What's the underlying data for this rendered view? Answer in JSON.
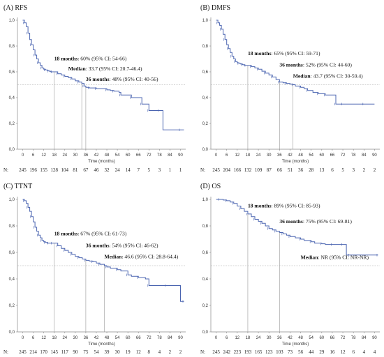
{
  "colors": {
    "curve": "#4a64b0",
    "guide": "#999999",
    "axis": "#888888",
    "censor": "#4a64b0"
  },
  "chart_data": [
    {
      "id": "A",
      "type": "line",
      "title": "(A) RFS",
      "xlabel": "Time (months)",
      "xticks": [
        0,
        6,
        12,
        18,
        24,
        30,
        36,
        42,
        48,
        54,
        60,
        66,
        72,
        78,
        84,
        90
      ],
      "xlim": [
        -3,
        93
      ],
      "yticks": [
        "0,0",
        "0,2",
        "0,4",
        "0,6",
        "0,8",
        "1,0"
      ],
      "ylim": [
        0,
        1
      ],
      "median_line": 0.5,
      "risk_label": "N:",
      "risk_table": [
        "245",
        "196",
        "155",
        "128",
        "104",
        "81",
        "67",
        "46",
        "32",
        "24",
        "14",
        "7",
        "5",
        "3",
        "1",
        "1"
      ],
      "curve": {
        "x": [
          0,
          1,
          2,
          3,
          4,
          5,
          6,
          7,
          8,
          9,
          10,
          11,
          12,
          13,
          14,
          15,
          16,
          17,
          18,
          20,
          22,
          24,
          26,
          28,
          30,
          32,
          33.7,
          35,
          36,
          38,
          40,
          42,
          45,
          48,
          50,
          52,
          55,
          56,
          60,
          62,
          66,
          68,
          70,
          72,
          75,
          78,
          80,
          90,
          92
        ],
        "y": [
          1.0,
          0.98,
          0.95,
          0.9,
          0.85,
          0.81,
          0.77,
          0.73,
          0.7,
          0.67,
          0.65,
          0.63,
          0.62,
          0.615,
          0.61,
          0.605,
          0.6,
          0.6,
          0.6,
          0.585,
          0.575,
          0.565,
          0.555,
          0.545,
          0.53,
          0.52,
          0.51,
          0.49,
          0.48,
          0.475,
          0.475,
          0.47,
          0.47,
          0.46,
          0.455,
          0.45,
          0.44,
          0.42,
          0.42,
          0.4,
          0.4,
          0.35,
          0.35,
          0.3,
          0.3,
          0.3,
          0.15,
          0.15,
          0.15
        ]
      },
      "guides": [
        18,
        33.7,
        36
      ],
      "annotations": [
        {
          "bold": "18 months",
          "rest": ": 60% (95% CI: 54-66)",
          "x": 18,
          "y": 0.69
        },
        {
          "bold": "Median",
          "rest": ": 33.7 (95% CI: 20.7-46.4)",
          "x": 26,
          "y": 0.61
        },
        {
          "bold": "36 months",
          "rest": ": 48% (95% CI: 40-56)",
          "x": 36,
          "y": 0.53
        }
      ]
    },
    {
      "id": "B",
      "type": "line",
      "title": "(B) DMFS",
      "xlabel": "Time (months)",
      "xticks": [
        0,
        6,
        12,
        18,
        24,
        30,
        36,
        42,
        48,
        54,
        60,
        66,
        72,
        78,
        84,
        90
      ],
      "xlim": [
        -3,
        93
      ],
      "yticks": [
        "0,0",
        "0,2",
        "0,4",
        "0,6",
        "0,8",
        "1,0"
      ],
      "ylim": [
        0,
        1
      ],
      "median_line": 0.5,
      "risk_label": "N:",
      "risk_table": [
        "245",
        "204",
        "166",
        "132",
        "109",
        "87",
        "66",
        "51",
        "36",
        "28",
        "13",
        "6",
        "5",
        "3",
        "2",
        "2"
      ],
      "curve": {
        "x": [
          0,
          1,
          2,
          3,
          4,
          5,
          6,
          7,
          8,
          9,
          10,
          11,
          12,
          13,
          14,
          15,
          16,
          17,
          18,
          20,
          22,
          24,
          26,
          28,
          30,
          32,
          34,
          36,
          38,
          40,
          42,
          43.7,
          45,
          48,
          50,
          52,
          55,
          58,
          60,
          62,
          66,
          68,
          70,
          72,
          78,
          84,
          90
        ],
        "y": [
          1.0,
          0.98,
          0.96,
          0.93,
          0.89,
          0.85,
          0.81,
          0.78,
          0.75,
          0.72,
          0.7,
          0.68,
          0.67,
          0.665,
          0.66,
          0.655,
          0.65,
          0.65,
          0.65,
          0.64,
          0.63,
          0.62,
          0.605,
          0.59,
          0.575,
          0.56,
          0.54,
          0.52,
          0.515,
          0.51,
          0.505,
          0.5,
          0.49,
          0.48,
          0.47,
          0.455,
          0.44,
          0.43,
          0.43,
          0.42,
          0.42,
          0.35,
          0.35,
          0.35,
          0.35,
          0.35,
          0.35
        ]
      },
      "guides": [
        18,
        36,
        43.7
      ],
      "annotations": [
        {
          "bold": "18 months",
          "rest": ": 65% (95% CI: 59-71)",
          "x": 18,
          "y": 0.73
        },
        {
          "bold": "36 months",
          "rest": ": 52% (95% CI: 44-60)",
          "x": 36,
          "y": 0.64
        },
        {
          "bold": "Median",
          "rest": ": 43.7 (95% CI: 30-59.4)",
          "x": 43.7,
          "y": 0.555
        }
      ]
    },
    {
      "id": "C",
      "type": "line",
      "title": "(C) TTNT",
      "xlabel": "Time (months)",
      "xticks": [
        0,
        6,
        12,
        18,
        24,
        30,
        36,
        42,
        48,
        54,
        60,
        66,
        72,
        78,
        84,
        90
      ],
      "xlim": [
        -3,
        93
      ],
      "yticks": [
        "0,0",
        "0,2",
        "0,4",
        "0,6",
        "0,8",
        "1,0"
      ],
      "ylim": [
        0,
        1
      ],
      "median_line": 0.5,
      "risk_label": "N:",
      "risk_table": [
        "245",
        "214",
        "170",
        "145",
        "117",
        "90",
        "75",
        "54",
        "39",
        "30",
        "19",
        "12",
        "8",
        "4",
        "2",
        "2"
      ],
      "curve": {
        "x": [
          0,
          1,
          2,
          3,
          4,
          5,
          6,
          7,
          8,
          9,
          10,
          11,
          12,
          13,
          14,
          15,
          16,
          17,
          18,
          20,
          22,
          24,
          26,
          28,
          30,
          32,
          34,
          36,
          38,
          40,
          42,
          44,
          46.6,
          48,
          50,
          54,
          56,
          60,
          62,
          66,
          70,
          72,
          78,
          82,
          90,
          92
        ],
        "y": [
          1.0,
          0.99,
          0.97,
          0.94,
          0.91,
          0.87,
          0.83,
          0.79,
          0.76,
          0.73,
          0.71,
          0.69,
          0.68,
          0.675,
          0.67,
          0.67,
          0.67,
          0.67,
          0.67,
          0.65,
          0.63,
          0.615,
          0.6,
          0.585,
          0.57,
          0.56,
          0.55,
          0.54,
          0.535,
          0.53,
          0.52,
          0.51,
          0.5,
          0.49,
          0.48,
          0.47,
          0.46,
          0.43,
          0.42,
          0.41,
          0.4,
          0.35,
          0.35,
          0.35,
          0.23,
          0.23
        ]
      },
      "guides": [
        18,
        36,
        46.6
      ],
      "annotations": [
        {
          "bold": "18 months",
          "rest": ": 67% (95% CI: 61-73)",
          "x": 18,
          "y": 0.73
        },
        {
          "bold": "36 months",
          "rest": ": 54% (95% CI: 46-62)",
          "x": 36,
          "y": 0.64
        },
        {
          "bold": "Median",
          "rest": ": 46.6 (95% CI: 28.8-64.4)",
          "x": 46.6,
          "y": 0.555
        }
      ]
    },
    {
      "id": "D",
      "type": "line",
      "title": "(D) OS",
      "xlabel": "Time (months)",
      "xticks": [
        0,
        6,
        12,
        18,
        24,
        30,
        36,
        42,
        48,
        54,
        60,
        66,
        72,
        78,
        84,
        90
      ],
      "xlim": [
        -3,
        93
      ],
      "yticks": [
        "0,0",
        "0,2",
        "0,4",
        "0,6",
        "0,8",
        "1,0"
      ],
      "ylim": [
        0,
        1
      ],
      "median_line": 0.5,
      "risk_label": "N:",
      "risk_table": [
        "245",
        "242",
        "223",
        "193",
        "165",
        "123",
        "103",
        "73",
        "56",
        "44",
        "29",
        "16",
        "12",
        "6",
        "4",
        "4"
      ],
      "curve": {
        "x": [
          0,
          2,
          4,
          6,
          8,
          10,
          12,
          14,
          16,
          18,
          20,
          22,
          24,
          26,
          28,
          30,
          32,
          34,
          36,
          38,
          40,
          42,
          45,
          48,
          50,
          54,
          56,
          60,
          62,
          66,
          70,
          72,
          74,
          76,
          84,
          92
        ],
        "y": [
          1.0,
          1.0,
          0.995,
          0.99,
          0.98,
          0.97,
          0.95,
          0.93,
          0.91,
          0.89,
          0.87,
          0.85,
          0.835,
          0.82,
          0.8,
          0.78,
          0.77,
          0.76,
          0.75,
          0.74,
          0.73,
          0.72,
          0.71,
          0.7,
          0.69,
          0.68,
          0.67,
          0.665,
          0.66,
          0.66,
          0.66,
          0.66,
          0.58,
          0.58,
          0.58,
          0.58
        ]
      },
      "guides": [
        18,
        36
      ],
      "annotations": [
        {
          "bold": "18 months",
          "rest": ": 89% (95% CI: 85-93)",
          "x": 18,
          "y": 0.94
        },
        {
          "bold": "36 months",
          "rest": ": 75% (95% CI: 69-81)",
          "x": 36,
          "y": 0.82
        },
        {
          "bold": "Median",
          "rest": ": NR (95% CI: NR-NR)",
          "x": 48,
          "y": 0.55
        }
      ]
    }
  ]
}
